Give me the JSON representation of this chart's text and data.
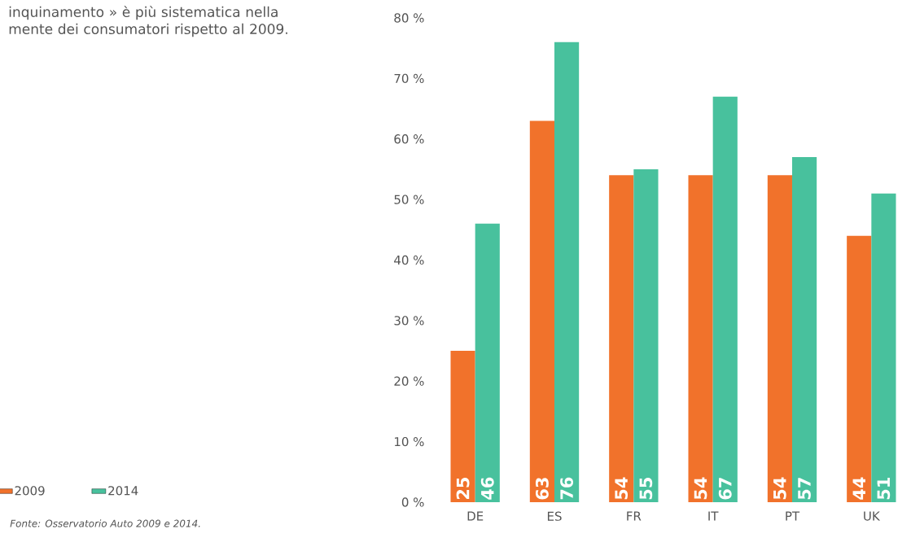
{
  "chart_data": {
    "type": "bar",
    "title": "inquinamento » è più sistematica nella mente dei consumatori rispetto al 2009.",
    "annotations": [
      "Fonte: Osservatorio Auto 2009 e 2014."
    ],
    "categories": [
      "DE",
      "ES",
      "FR",
      "IT",
      "PT",
      "UK"
    ],
    "series": [
      {
        "name": "2009",
        "color": "#f1722b",
        "values": [
          25,
          63,
          54,
          54,
          54,
          44
        ]
      },
      {
        "name": "2014",
        "color": "#48c19d",
        "values": [
          46,
          76,
          55,
          67,
          57,
          51
        ]
      }
    ],
    "ylim": [
      0,
      80
    ],
    "yticks": [
      {
        "value": 0,
        "label": "0 %"
      },
      {
        "value": 10,
        "label": "10 %"
      },
      {
        "value": 20,
        "label": "20 %"
      },
      {
        "value": 30,
        "label": "30 %"
      },
      {
        "value": 40,
        "label": "40 %"
      },
      {
        "value": 50,
        "label": "50 %"
      },
      {
        "value": 60,
        "label": "60 %"
      },
      {
        "value": 70,
        "label": "70 %"
      },
      {
        "value": 80,
        "label": "80 %"
      }
    ],
    "data_labels": true,
    "grid": false,
    "legend": "bottom left"
  }
}
